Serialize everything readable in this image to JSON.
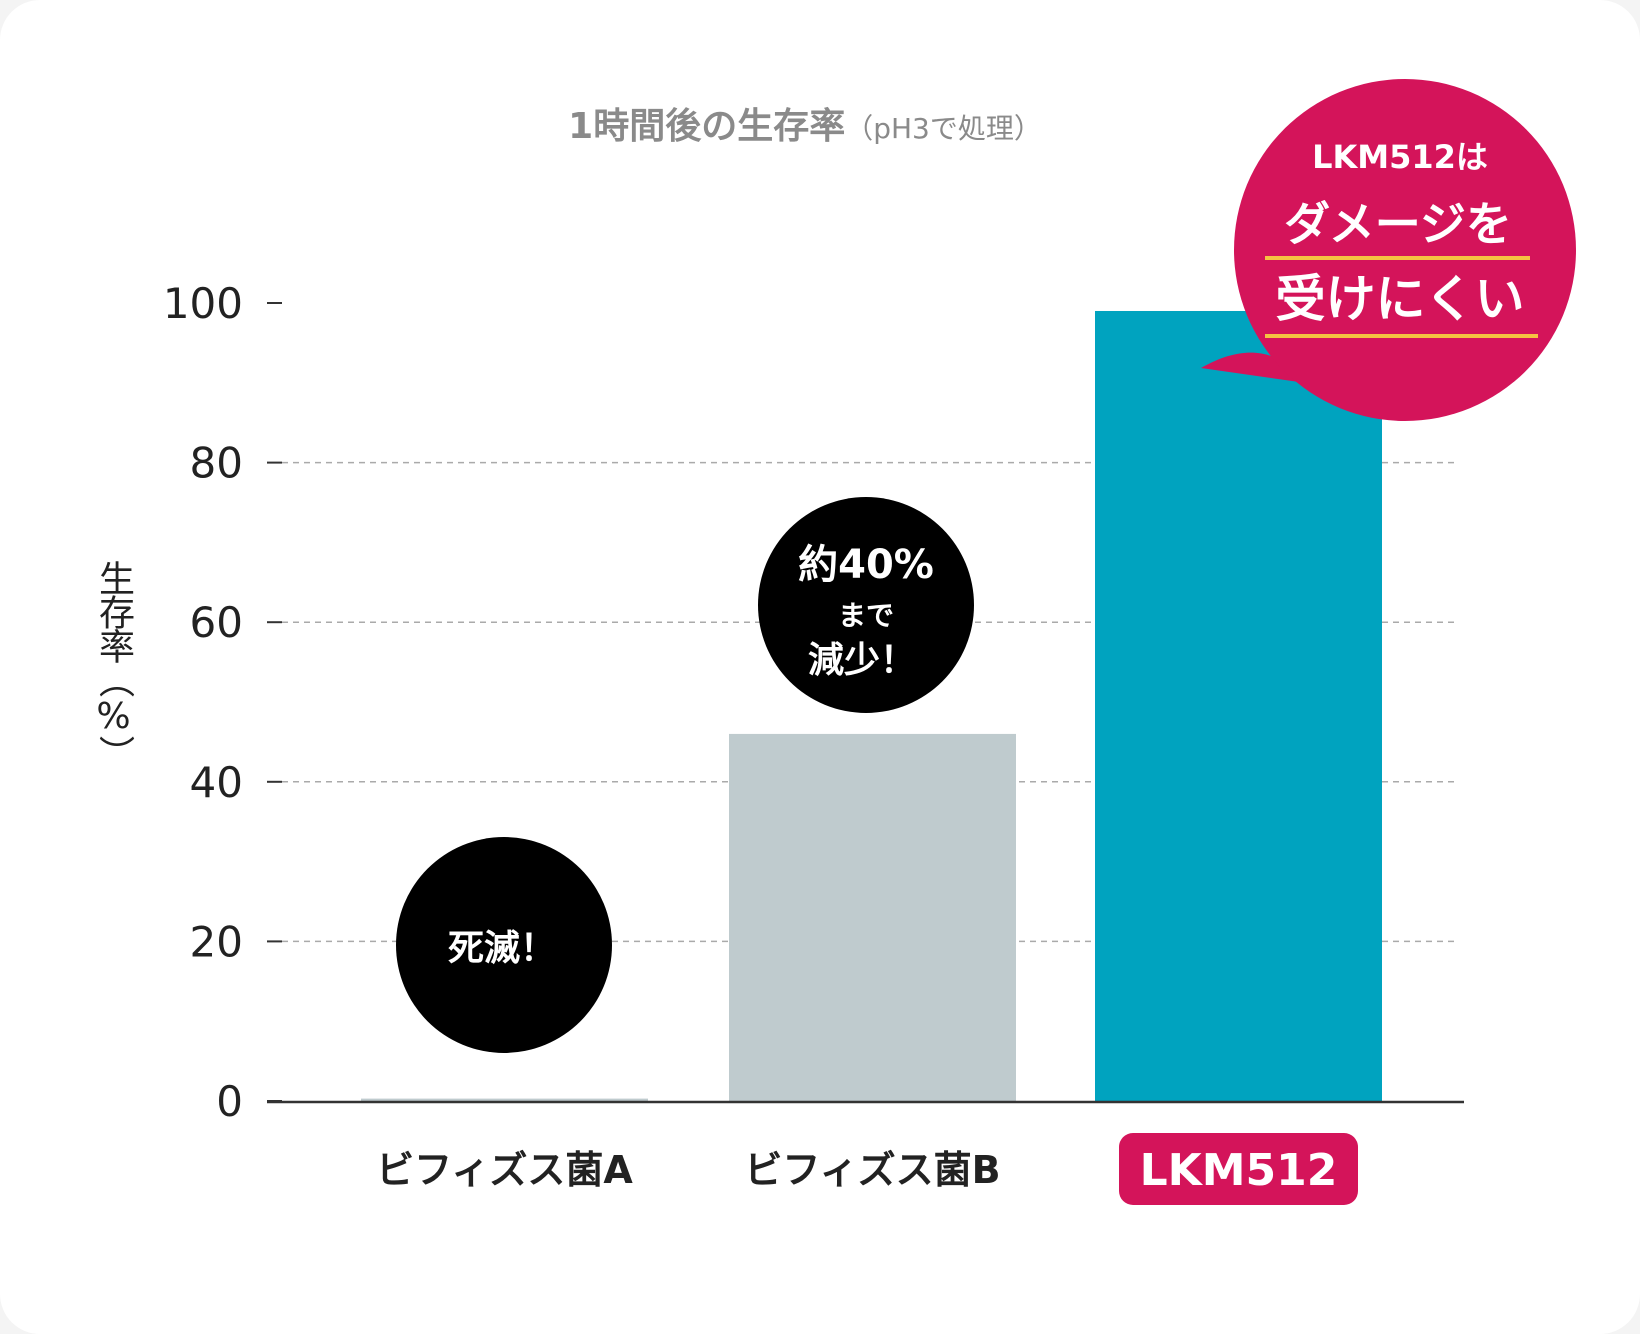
{
  "chart_data": {
    "type": "bar",
    "title": "1時間後の生存率",
    "subtitle": "（pH3で処理）",
    "ylabel": "生存率（%）",
    "xlabel": "",
    "ylim": [
      0,
      100
    ],
    "yticks": [
      "0",
      "20",
      "40",
      "60",
      "80",
      "100"
    ],
    "grid": true,
    "categories": [
      "ビフィズス菌A",
      "ビフィズス菌B",
      "LKM512"
    ],
    "values": [
      0.3,
      46,
      99
    ],
    "colors": {
      "bar_a": "#bfcbce",
      "bar_b": "#bfcbce",
      "bar_lkm": "#00a3bf",
      "highlight": "#d4145a",
      "underline": "#f5c242",
      "callout": "#000000"
    },
    "annotations": {
      "a": [
        "死滅！"
      ],
      "b": [
        "約40%",
        "まで",
        "減少！"
      ],
      "lkm": [
        "LKM512は",
        "ダメージを",
        "受けにくい"
      ]
    }
  }
}
